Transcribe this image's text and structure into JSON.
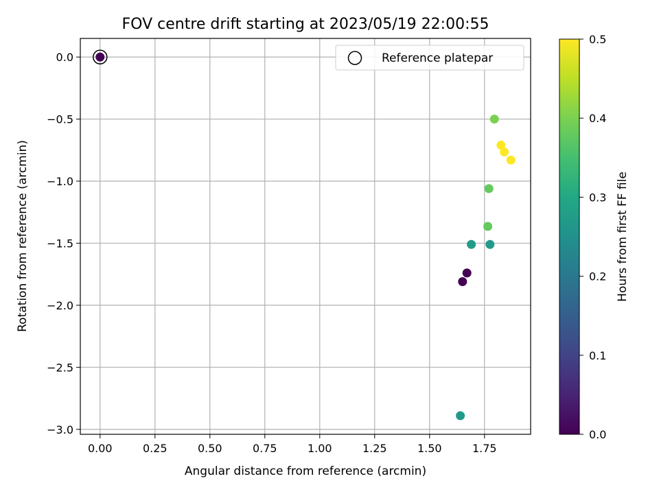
{
  "chart_data": {
    "type": "scatter",
    "title": "FOV centre drift starting at 2023/05/19 22:00:55",
    "xlabel": "Angular distance from reference (arcmin)",
    "ylabel": "Rotation from reference (arcmin)",
    "xlim": [
      -0.09,
      1.96
    ],
    "ylim": [
      -3.04,
      0.15
    ],
    "xticks": [
      0.0,
      0.25,
      0.5,
      0.75,
      1.0,
      1.25,
      1.5,
      1.75
    ],
    "xtick_labels": [
      "0.00",
      "0.25",
      "0.50",
      "0.75",
      "1.00",
      "1.25",
      "1.50",
      "1.75"
    ],
    "yticks": [
      0.0,
      -0.5,
      -1.0,
      -1.5,
      -2.0,
      -2.5,
      -3.0
    ],
    "ytick_labels": [
      "0.0",
      "−0.5",
      "−1.0",
      "−1.5",
      "−2.0",
      "−2.5",
      "−3.0"
    ],
    "grid": true,
    "legend": {
      "position": "top-right",
      "entries": [
        "Reference platepar"
      ]
    },
    "reference_point": {
      "x": 0.0,
      "y": 0.0
    },
    "points": [
      {
        "x": 0.0,
        "y": 0.0,
        "hours": 0.0
      },
      {
        "x": 1.65,
        "y": -1.81,
        "hours": 0.0
      },
      {
        "x": 1.67,
        "y": -1.74,
        "hours": 0.0
      },
      {
        "x": 1.69,
        "y": -1.51,
        "hours": 0.27
      },
      {
        "x": 1.775,
        "y": -1.51,
        "hours": 0.27
      },
      {
        "x": 1.64,
        "y": -2.89,
        "hours": 0.27
      },
      {
        "x": 1.765,
        "y": -1.365,
        "hours": 0.38
      },
      {
        "x": 1.77,
        "y": -1.06,
        "hours": 0.38
      },
      {
        "x": 1.795,
        "y": -0.5,
        "hours": 0.4
      },
      {
        "x": 1.825,
        "y": -0.71,
        "hours": 0.5
      },
      {
        "x": 1.84,
        "y": -0.765,
        "hours": 0.5
      },
      {
        "x": 1.87,
        "y": -0.83,
        "hours": 0.5
      }
    ],
    "colorbar": {
      "label": "Hours from first FF file",
      "min": 0.0,
      "max": 0.5,
      "colormap": "viridis",
      "ticks": [
        0.0,
        0.1,
        0.2,
        0.3,
        0.4,
        0.5
      ],
      "tick_labels": [
        "0.0",
        "0.1",
        "0.2",
        "0.3",
        "0.4",
        "0.5"
      ]
    }
  }
}
